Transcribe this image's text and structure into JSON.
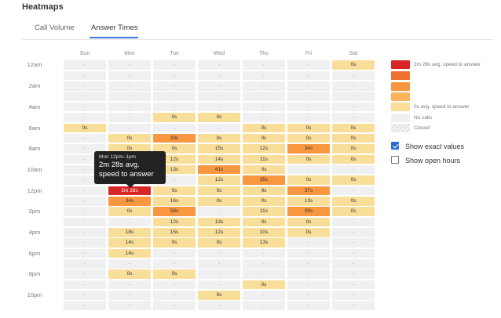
{
  "header": {
    "title": "Heatmaps"
  },
  "tabs": [
    {
      "label": "Call Volume",
      "active": false
    },
    {
      "label": "Answer Times",
      "active": true
    }
  ],
  "days": [
    "Sun",
    "Mon",
    "Tue",
    "Wed",
    "Thu",
    "Fri",
    "Sat"
  ],
  "hours": [
    "12am",
    "",
    "2am",
    "",
    "4am",
    "",
    "6am",
    "",
    "8am",
    "",
    "10am",
    "",
    "12pm",
    "",
    "2pm",
    "",
    "4pm",
    "",
    "6pm",
    "",
    "8pm",
    "",
    "10pm",
    ""
  ],
  "rows": [
    [
      [
        "-",
        "n"
      ],
      [
        "-",
        "n"
      ],
      [
        "-",
        "n"
      ],
      [
        "-",
        "n"
      ],
      [
        "-",
        "n"
      ],
      [
        "-",
        "n"
      ],
      [
        "0s",
        "c0"
      ]
    ],
    [
      [
        "-",
        "n"
      ],
      [
        "-",
        "n"
      ],
      [
        "-",
        "n"
      ],
      [
        "-",
        "n"
      ],
      [
        "-",
        "n"
      ],
      [
        "-",
        "n"
      ],
      [
        "-",
        "n"
      ]
    ],
    [
      [
        "-",
        "n"
      ],
      [
        "-",
        "n"
      ],
      [
        "-",
        "n"
      ],
      [
        "-",
        "n"
      ],
      [
        "-",
        "n"
      ],
      [
        "-",
        "n"
      ],
      [
        "-",
        "n"
      ]
    ],
    [
      [
        "-",
        "n"
      ],
      [
        "-",
        "n"
      ],
      [
        "-",
        "n"
      ],
      [
        "-",
        "n"
      ],
      [
        "-",
        "n"
      ],
      [
        "-",
        "n"
      ],
      [
        "-",
        "n"
      ]
    ],
    [
      [
        "-",
        "n"
      ],
      [
        "-",
        "n"
      ],
      [
        "-",
        "n"
      ],
      [
        "-",
        "n"
      ],
      [
        "-",
        "n"
      ],
      [
        "-",
        "n"
      ],
      [
        "-",
        "n"
      ]
    ],
    [
      [
        "-",
        "n"
      ],
      [
        "-",
        "n"
      ],
      [
        "0s",
        "c0"
      ],
      [
        "0s",
        "c0"
      ],
      [
        "-",
        "n"
      ],
      [
        "-",
        "n"
      ],
      [
        "-",
        "n"
      ]
    ],
    [
      [
        "0s",
        "c0"
      ],
      [
        "-",
        "n"
      ],
      [
        "-",
        "n"
      ],
      [
        "-",
        "n"
      ],
      [
        "0s",
        "c0"
      ],
      [
        "0s",
        "c0"
      ],
      [
        "0s",
        "c0"
      ]
    ],
    [
      [
        "-",
        "n"
      ],
      [
        "0s",
        "c0"
      ],
      [
        "33s",
        "c2"
      ],
      [
        "0s",
        "c0"
      ],
      [
        "0s",
        "c0"
      ],
      [
        "0s",
        "c0"
      ],
      [
        "0s",
        "c0"
      ]
    ],
    [
      [
        "-",
        "n"
      ],
      [
        "0s",
        "c0"
      ],
      [
        "0s",
        "c0"
      ],
      [
        "15s",
        "c0"
      ],
      [
        "12s",
        "c0"
      ],
      [
        "34s",
        "c2"
      ],
      [
        "0s",
        "c0"
      ]
    ],
    [
      [
        "-",
        "n"
      ],
      [
        "0s",
        "c0"
      ],
      [
        "12s",
        "c0"
      ],
      [
        "14s",
        "c0"
      ],
      [
        "11s",
        "c0"
      ],
      [
        "0s",
        "c0"
      ],
      [
        "0s",
        "c0"
      ]
    ],
    [
      [
        "-",
        "n"
      ],
      [
        "0s",
        "c0"
      ],
      [
        "13s",
        "c0"
      ],
      [
        "41s",
        "c2"
      ],
      [
        "0s",
        "c0"
      ],
      [
        "-",
        "n"
      ],
      [
        "-",
        "n"
      ]
    ],
    [
      [
        "-",
        "n"
      ],
      [
        "-",
        "n"
      ],
      [
        "-",
        "n"
      ],
      [
        "12s",
        "c0"
      ],
      [
        "35s",
        "c2"
      ],
      [
        "0s",
        "c0"
      ],
      [
        "0s",
        "c0"
      ]
    ],
    [
      [
        "-",
        "n"
      ],
      [
        "2m 28s",
        "c4"
      ],
      [
        "0s",
        "c0"
      ],
      [
        "0s",
        "c0"
      ],
      [
        "9s",
        "c0"
      ],
      [
        "37s",
        "c2"
      ],
      [
        "-",
        "n"
      ]
    ],
    [
      [
        "-",
        "n"
      ],
      [
        "34s",
        "c2"
      ],
      [
        "16s",
        "c0"
      ],
      [
        "0s",
        "c0"
      ],
      [
        "0s",
        "c0"
      ],
      [
        "13s",
        "c0"
      ],
      [
        "0s",
        "c0"
      ]
    ],
    [
      [
        "-",
        "n"
      ],
      [
        "0s",
        "c0"
      ],
      [
        "58s",
        "c2"
      ],
      [
        "-",
        "n"
      ],
      [
        "11s",
        "c0"
      ],
      [
        "39s",
        "c2"
      ],
      [
        "0s",
        "c0"
      ]
    ],
    [
      [
        "-",
        "n"
      ],
      [
        "-",
        "n"
      ],
      [
        "12s",
        "c0"
      ],
      [
        "13s",
        "c0"
      ],
      [
        "0s",
        "c0"
      ],
      [
        "0s",
        "c0"
      ],
      [
        "-",
        "n"
      ]
    ],
    [
      [
        "-",
        "n"
      ],
      [
        "18s",
        "c0"
      ],
      [
        "15s",
        "c0"
      ],
      [
        "12s",
        "c0"
      ],
      [
        "10s",
        "c0"
      ],
      [
        "0s",
        "c0"
      ],
      [
        "-",
        "n"
      ]
    ],
    [
      [
        "-",
        "n"
      ],
      [
        "14s",
        "c0"
      ],
      [
        "0s",
        "c0"
      ],
      [
        "0s",
        "c0"
      ],
      [
        "13s",
        "c0"
      ],
      [
        "-",
        "n"
      ],
      [
        "-",
        "n"
      ]
    ],
    [
      [
        "-",
        "n"
      ],
      [
        "14s",
        "c0"
      ],
      [
        "-",
        "n"
      ],
      [
        "-",
        "n"
      ],
      [
        "-",
        "n"
      ],
      [
        "-",
        "n"
      ],
      [
        "-",
        "n"
      ]
    ],
    [
      [
        "-",
        "n"
      ],
      [
        "-",
        "n"
      ],
      [
        "-",
        "n"
      ],
      [
        "-",
        "n"
      ],
      [
        "-",
        "n"
      ],
      [
        "-",
        "n"
      ],
      [
        "-",
        "n"
      ]
    ],
    [
      [
        "-",
        "n"
      ],
      [
        "0s",
        "c0"
      ],
      [
        "0s",
        "c0"
      ],
      [
        "-",
        "n"
      ],
      [
        "-",
        "n"
      ],
      [
        "-",
        "n"
      ],
      [
        "-",
        "n"
      ]
    ],
    [
      [
        "-",
        "n"
      ],
      [
        "-",
        "n"
      ],
      [
        "-",
        "n"
      ],
      [
        "-",
        "n"
      ],
      [
        "0s",
        "c0"
      ],
      [
        "-",
        "n"
      ],
      [
        "-",
        "n"
      ]
    ],
    [
      [
        "-",
        "n"
      ],
      [
        "-",
        "n"
      ],
      [
        "-",
        "n"
      ],
      [
        "0s",
        "c0"
      ],
      [
        "-",
        "n"
      ],
      [
        "-",
        "n"
      ],
      [
        "-",
        "n"
      ]
    ],
    [
      [
        "-",
        "n"
      ],
      [
        "-",
        "n"
      ],
      [
        "-",
        "n"
      ],
      [
        "-",
        "n"
      ],
      [
        "-",
        "n"
      ],
      [
        "-",
        "n"
      ],
      [
        "-",
        "n"
      ]
    ]
  ],
  "legend": [
    {
      "label": "2m 28s avg. speed to answer",
      "color": "#d82626",
      "kind": "solid"
    },
    {
      "label": "",
      "color": "#ef6f2e",
      "kind": "solid"
    },
    {
      "label": "",
      "color": "#f99741",
      "kind": "solid"
    },
    {
      "label": "",
      "color": "#fbb35e",
      "kind": "solid"
    },
    {
      "label": "0s avg. speed to answer",
      "color": "#f8de99",
      "kind": "solid"
    },
    {
      "label": "No calls",
      "color": "#f0f0f2",
      "kind": "solid"
    },
    {
      "label": "Closed",
      "color": "",
      "kind": "hatch"
    }
  ],
  "options": [
    {
      "label": "Show exact values",
      "checked": true
    },
    {
      "label": "Show open hours",
      "checked": false
    }
  ],
  "tooltip": {
    "header": "Mon 12pm–1pm",
    "line1": "2m 28s avg.",
    "line2": "speed to answer"
  }
}
